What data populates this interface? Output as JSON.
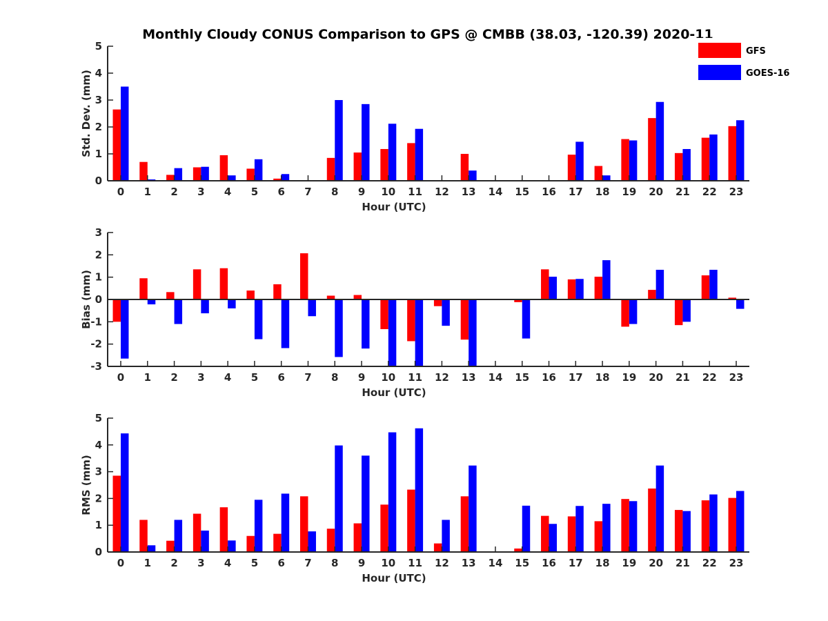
{
  "title": "Monthly Cloudy CONUS Comparison to GPS @ CMBB (38.03, -120.39) 2020-11",
  "legend": [
    {
      "label": "GFS",
      "color": "#ff0000"
    },
    {
      "label": "GOES-16",
      "color": "#0000ff"
    }
  ],
  "chart_data": [
    {
      "type": "bar",
      "ylabel": "Std. Dev. (mm)",
      "xlabel": "Hour (UTC)",
      "ylim": [
        0,
        5
      ],
      "yticks": [
        "0",
        "1",
        "2",
        "3",
        "4",
        "5"
      ],
      "categories": [
        "0",
        "1",
        "2",
        "3",
        "4",
        "5",
        "6",
        "7",
        "8",
        "9",
        "10",
        "11",
        "12",
        "13",
        "14",
        "15",
        "16",
        "17",
        "18",
        "19",
        "20",
        "21",
        "22",
        "23"
      ],
      "series": [
        {
          "name": "GFS",
          "values": [
            2.65,
            0.7,
            0.22,
            0.5,
            0.95,
            0.45,
            0.08,
            0,
            0.85,
            1.05,
            1.18,
            1.4,
            0,
            1.0,
            0,
            0,
            0,
            0.97,
            0.55,
            1.55,
            2.33,
            1.03,
            1.6,
            2.03
          ]
        },
        {
          "name": "GOES-16",
          "values": [
            3.5,
            0.05,
            0.47,
            0.52,
            0.2,
            0.8,
            0.25,
            0,
            3.0,
            2.85,
            2.12,
            1.93,
            0,
            0.38,
            0,
            0,
            0,
            1.45,
            0.2,
            1.5,
            2.93,
            1.18,
            1.72,
            2.25
          ]
        }
      ]
    },
    {
      "type": "bar",
      "ylabel": "Bias (mm)",
      "xlabel": "Hour (UTC)",
      "ylim": [
        -3,
        3
      ],
      "yticks": [
        "-3",
        "-2",
        "-1",
        "0",
        "1",
        "2",
        "3"
      ],
      "categories": [
        "0",
        "1",
        "2",
        "3",
        "4",
        "5",
        "6",
        "7",
        "8",
        "9",
        "10",
        "11",
        "12",
        "13",
        "14",
        "15",
        "16",
        "17",
        "18",
        "19",
        "20",
        "21",
        "22",
        "23"
      ],
      "series": [
        {
          "name": "GFS",
          "values": [
            -1.0,
            0.95,
            0.33,
            1.35,
            1.4,
            0.4,
            0.68,
            2.07,
            0.17,
            0.2,
            -1.33,
            -1.87,
            -0.3,
            -1.8,
            0,
            -0.12,
            1.35,
            0.9,
            1.02,
            -1.22,
            0.43,
            -1.15,
            1.08,
            0.08
          ]
        },
        {
          "name": "GOES-16",
          "values": [
            -2.65,
            -0.22,
            -1.1,
            -0.62,
            -0.4,
            -1.78,
            -2.18,
            -0.75,
            -2.58,
            -2.2,
            -3.0,
            -3.0,
            -1.18,
            -3.0,
            0,
            -1.75,
            1.02,
            0.92,
            1.76,
            -1.1,
            1.33,
            -1.0,
            1.33,
            -0.42
          ]
        }
      ]
    },
    {
      "type": "bar",
      "ylabel": "RMS (mm)",
      "xlabel": "Hour (UTC)",
      "ylim": [
        0,
        5
      ],
      "yticks": [
        "0",
        "1",
        "2",
        "3",
        "4",
        "5"
      ],
      "categories": [
        "0",
        "1",
        "2",
        "3",
        "4",
        "5",
        "6",
        "7",
        "8",
        "9",
        "10",
        "11",
        "12",
        "13",
        "14",
        "15",
        "16",
        "17",
        "18",
        "19",
        "20",
        "21",
        "22",
        "23"
      ],
      "series": [
        {
          "name": "GFS",
          "values": [
            2.85,
            1.2,
            0.42,
            1.43,
            1.67,
            0.6,
            0.68,
            2.08,
            0.87,
            1.07,
            1.77,
            2.33,
            0.32,
            2.08,
            0,
            0.13,
            1.35,
            1.33,
            1.15,
            1.98,
            2.37,
            1.57,
            1.93,
            2.02
          ]
        },
        {
          "name": "GOES-16",
          "values": [
            4.43,
            0.25,
            1.2,
            0.8,
            0.43,
            1.95,
            2.18,
            0.77,
            3.98,
            3.6,
            4.47,
            4.62,
            1.2,
            3.23,
            0,
            1.73,
            1.05,
            1.72,
            1.8,
            1.9,
            3.23,
            1.53,
            2.15,
            2.28
          ]
        }
      ]
    }
  ]
}
